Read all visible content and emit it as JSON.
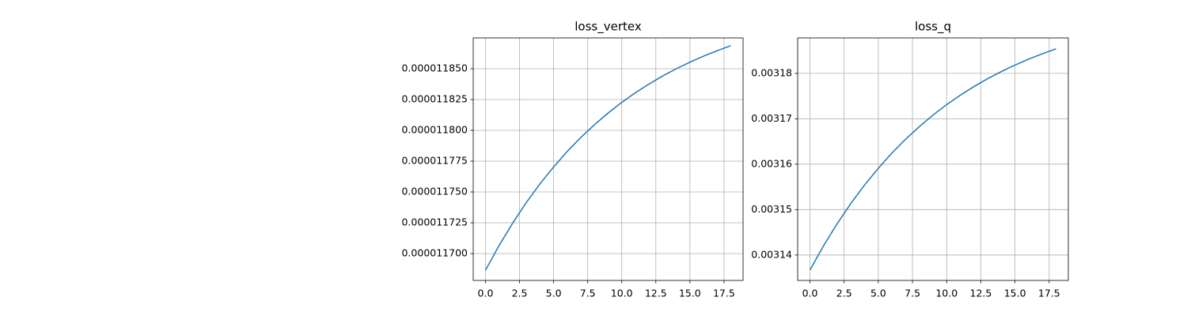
{
  "chart_data": [
    {
      "type": "line",
      "title": "loss_vertex",
      "x": [
        0,
        1,
        2,
        3,
        4,
        5,
        6,
        7,
        8,
        9,
        10,
        11,
        12,
        13,
        14,
        15,
        16,
        17,
        18
      ],
      "series": [
        {
          "name": "loss_vertex",
          "color": "#1f77b4",
          "values": [
            1.16865e-05,
            1.17066e-05,
            1.17248e-05,
            1.17415e-05,
            1.17566e-05,
            1.17703e-05,
            1.17829e-05,
            1.17943e-05,
            1.18046e-05,
            1.18141e-05,
            1.18227e-05,
            1.18305e-05,
            1.18376e-05,
            1.18441e-05,
            1.185e-05,
            1.18553e-05,
            1.18602e-05,
            1.18646e-05,
            1.18687e-05
          ]
        }
      ],
      "xlim": [
        -0.9,
        18.9
      ],
      "xticks": [
        {
          "value": 0,
          "label": "0.0"
        },
        2.5,
        {
          "value": 5,
          "label": "5.0"
        },
        7.5,
        {
          "value": 10,
          "label": "10.0"
        },
        12.5,
        {
          "value": 15,
          "label": "15.0"
        },
        17.5
      ],
      "ylim": [
        1.16782e-05,
        1.1875e-05
      ],
      "yticks": [
        {
          "value": 1.17e-05,
          "label": "0.000011700"
        },
        {
          "value": 1.1725e-05,
          "label": "0.000011725"
        },
        {
          "value": 1.175e-05,
          "label": "0.000011750"
        },
        {
          "value": 1.1775e-05,
          "label": "0.000011775"
        },
        {
          "value": 1.18e-05,
          "label": "0.000011800"
        },
        {
          "value": 1.1825e-05,
          "label": "0.000011825"
        },
        {
          "value": 1.185e-05,
          "label": "0.000011850"
        }
      ],
      "grid": true
    },
    {
      "type": "line",
      "title": "loss_q",
      "x": [
        0,
        1,
        2,
        3,
        4,
        5,
        6,
        7,
        8,
        9,
        10,
        11,
        12,
        13,
        14,
        15,
        16,
        17,
        18
      ],
      "series": [
        {
          "name": "loss_q",
          "color": "#1f77b4",
          "values": [
            0.0031367,
            0.00314207,
            0.00314694,
            0.0031514,
            0.00315544,
            0.0031591,
            0.00316247,
            0.00316551,
            0.00316827,
            0.00317081,
            0.00317311,
            0.00317519,
            0.00317709,
            0.00317883,
            0.0031804,
            0.00318182,
            0.00318313,
            0.00318431,
            0.0031854
          ]
        }
      ],
      "xlim": [
        -0.9,
        18.9
      ],
      "xticks": [
        {
          "value": 0,
          "label": "0.0"
        },
        2.5,
        {
          "value": 5,
          "label": "5.0"
        },
        7.5,
        {
          "value": 10,
          "label": "10.0"
        },
        12.5,
        {
          "value": 15,
          "label": "15.0"
        },
        17.5
      ],
      "ylim": [
        0.0031344,
        0.0031878
      ],
      "yticks": [
        0.00314,
        0.00315,
        0.00316,
        0.00317,
        0.00318
      ],
      "grid": true
    }
  ]
}
